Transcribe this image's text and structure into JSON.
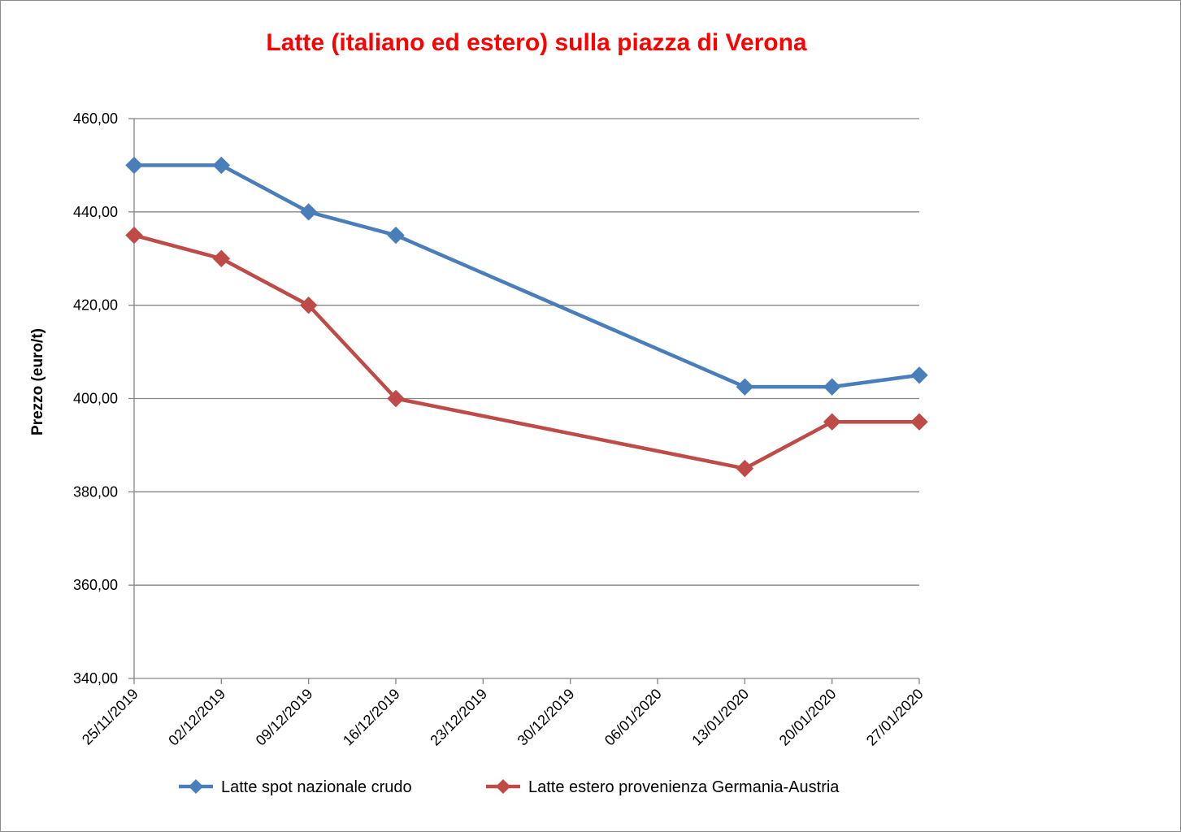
{
  "chart_data": {
    "type": "line",
    "title": "Latte (italiano ed estero) sulla piazza di Verona",
    "xlabel": "",
    "ylabel": "Prezzo (euro/t)",
    "categories": [
      "25/11/2019",
      "02/12/2019",
      "09/12/2019",
      "16/12/2019",
      "23/12/2019",
      "30/12/2019",
      "06/01/2020",
      "13/01/2020",
      "20/01/2020",
      "27/01/2020"
    ],
    "y_ticks": [
      "340,00",
      "360,00",
      "380,00",
      "400,00",
      "420,00",
      "440,00",
      "460,00"
    ],
    "ylim": [
      340,
      460
    ],
    "grid": "horizontal",
    "legend_position": "bottom",
    "series": [
      {
        "name": "Latte spot nazionale crudo",
        "color": "#4a7ebb",
        "values": [
          450,
          450,
          440,
          435,
          null,
          null,
          null,
          402.5,
          402.5,
          405
        ]
      },
      {
        "name": "Latte estero provenienza Germania-Austria",
        "color": "#be4b48",
        "values": [
          435,
          430,
          420,
          400,
          null,
          null,
          null,
          385,
          395,
          395
        ]
      }
    ]
  }
}
